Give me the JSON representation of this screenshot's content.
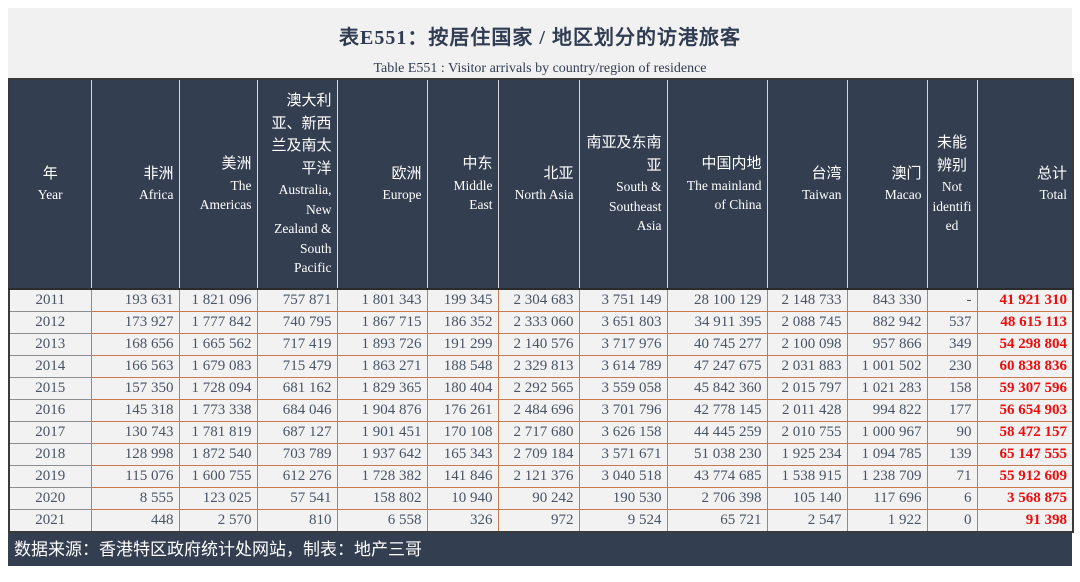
{
  "header": {
    "title": "表E551：按居住国家 / 地区划分的访港旅客",
    "subtitle": "Table E551 : Visitor arrivals by country/region of residence"
  },
  "chart_data": {
    "type": "table",
    "title": "表E551：按居住国家 / 地区划分的访港旅客",
    "subtitle": "Table E551 : Visitor arrivals by country/region of residence",
    "columns": [
      {
        "key": "year",
        "zh": "年",
        "en": "Year"
      },
      {
        "key": "africa",
        "zh": "非洲",
        "en": "Africa"
      },
      {
        "key": "americas",
        "zh": "美洲",
        "en": "The Americas"
      },
      {
        "key": "australia-nz-south-pacific",
        "zh": "澳大利亚、新西兰及南太平洋",
        "en": "Australia, New Zealand & South Pacific"
      },
      {
        "key": "europe",
        "zh": "欧洲",
        "en": "Europe"
      },
      {
        "key": "middle-east",
        "zh": "中东",
        "en": "Middle East"
      },
      {
        "key": "north-asia",
        "zh": "北亚",
        "en": "North Asia"
      },
      {
        "key": "south-southeast-asia",
        "zh": "南亚及东南亚",
        "en": "South & Southeast Asia"
      },
      {
        "key": "mainland-china",
        "zh": "中国内地",
        "en": "The mainland of China"
      },
      {
        "key": "taiwan",
        "zh": "台湾",
        "en": "Taiwan"
      },
      {
        "key": "macao",
        "zh": "澳门",
        "en": "Macao"
      },
      {
        "key": "not-identified",
        "zh": "未能辨别",
        "en": "Not identified"
      },
      {
        "key": "total",
        "zh": "总计",
        "en": "Total"
      }
    ],
    "rows": [
      [
        "2011",
        "193 631",
        "1 821 096",
        "757 871",
        "1 801 343",
        "199 345",
        "2 304 683",
        "3 751 149",
        "28 100 129",
        "2 148 733",
        "843 330",
        "-",
        "41 921 310"
      ],
      [
        "2012",
        "173 927",
        "1 777 842",
        "740 795",
        "1 867 715",
        "186 352",
        "2 333 060",
        "3 651 803",
        "34 911 395",
        "2 088 745",
        "882 942",
        "537",
        "48 615 113"
      ],
      [
        "2013",
        "168 656",
        "1 665 562",
        "717 419",
        "1 893 726",
        "191 299",
        "2 140 576",
        "3 717 976",
        "40 745 277",
        "2 100 098",
        "957 866",
        "349",
        "54 298 804"
      ],
      [
        "2014",
        "166 563",
        "1 679 083",
        "715 479",
        "1 863 271",
        "188 548",
        "2 329 813",
        "3 614 789",
        "47 247 675",
        "2 031 883",
        "1 001 502",
        "230",
        "60 838 836"
      ],
      [
        "2015",
        "157 350",
        "1 728 094",
        "681 162",
        "1 829 365",
        "180 404",
        "2 292 565",
        "3 559 058",
        "45 842 360",
        "2 015 797",
        "1 021 283",
        "158",
        "59 307 596"
      ],
      [
        "2016",
        "145 318",
        "1 773 338",
        "684 046",
        "1 904 876",
        "176 261",
        "2 484 696",
        "3 701 796",
        "42 778 145",
        "2 011 428",
        "994 822",
        "177",
        "56 654 903"
      ],
      [
        "2017",
        "130 743",
        "1 781 819",
        "687 127",
        "1 901 451",
        "170 108",
        "2 717 680",
        "3 626 158",
        "44 445 259",
        "2 010 755",
        "1 000 967",
        "90",
        "58 472 157"
      ],
      [
        "2018",
        "128 998",
        "1 872 540",
        "703 789",
        "1 937 642",
        "165 343",
        "2 709 184",
        "3 571 671",
        "51 038 230",
        "1 925 234",
        "1 094 785",
        "139",
        "65 147 555"
      ],
      [
        "2019",
        "115 076",
        "1 600 755",
        "612 276",
        "1 728 382",
        "141 846",
        "2 121 376",
        "3 040 518",
        "43 774 685",
        "1 538 915",
        "1 238 709",
        "71",
        "55 912 609"
      ],
      [
        "2020",
        "8 555",
        "123 025",
        "57 541",
        "158 802",
        "10 940",
        "90 242",
        "190 530",
        "2 706 398",
        "105 140",
        "117 696",
        "6",
        "3 568 875"
      ],
      [
        "2021",
        "448",
        "2 570",
        "810",
        "6 558",
        "326",
        "972",
        "9 524",
        "65 721",
        "2 547",
        "1 922",
        "0",
        "91 398"
      ]
    ]
  },
  "footer": {
    "source": "数据来源：香港特区政府统计处网站，制表：地产三哥"
  },
  "colors": {
    "header_bg": "#333e50",
    "footer_bg": "#333e50",
    "title_text": "#303c52",
    "band_bg": "#f1f1f1",
    "row_bg": "#f2f2f2",
    "cell_border_orange": "#c87a4e",
    "year_border_gray": "#8e8e8e",
    "data_text": "#485466",
    "total_text_red": "#ee0d0d",
    "header_text": "#ffffff"
  }
}
